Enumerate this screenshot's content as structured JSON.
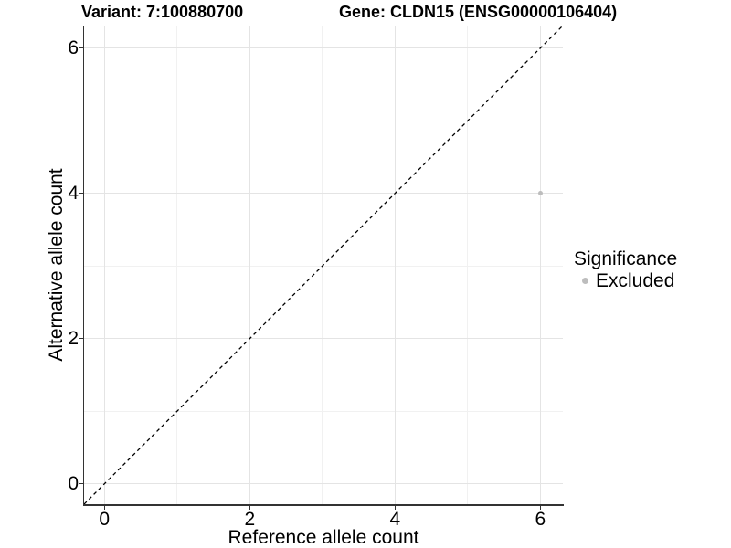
{
  "chart_data": {
    "type": "scatter",
    "title_left": "Variant: 7:100880700",
    "title_right": "Gene: CLDN15 (ENSG00000106404)",
    "xlabel": "Reference allele count",
    "ylabel": "Alternative allele count",
    "xlim": [
      -0.28,
      6.31
    ],
    "ylim": [
      -0.28,
      6.31
    ],
    "x_ticks": [
      0,
      2,
      4,
      6
    ],
    "y_ticks": [
      0,
      2,
      4,
      6
    ],
    "x_minor_ticks": [
      1,
      3,
      5
    ],
    "y_minor_ticks": [
      1,
      3,
      5
    ],
    "grid": true,
    "series": [
      {
        "name": "Excluded",
        "color": "#bdbdbd",
        "points": [
          {
            "x": 6,
            "y": 4
          }
        ]
      }
    ],
    "reference_line": {
      "equation": "y = x",
      "style": "dashed",
      "color": "#000000"
    },
    "legend": {
      "title": "Significance",
      "position": "right",
      "entries": [
        {
          "label": "Excluded",
          "color": "#bdbdbd"
        }
      ]
    }
  },
  "colors": {
    "background": "#ffffff",
    "grid_major": "#e4e4e4",
    "grid_minor": "#f1f1f1",
    "axis_line": "#333333",
    "text": "#000000"
  }
}
